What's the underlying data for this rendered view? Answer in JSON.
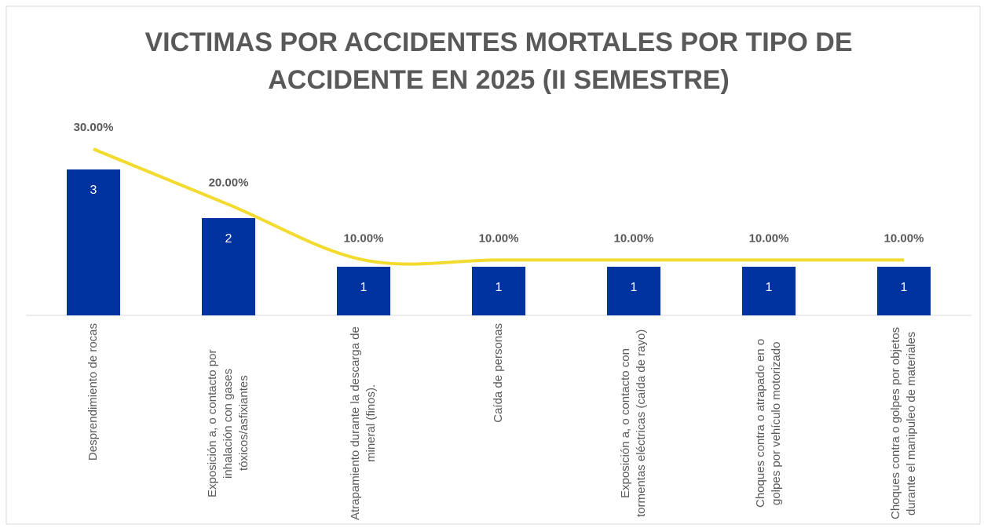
{
  "chart_data": {
    "type": "bar_line",
    "title": "VICTIMAS POR ACCIDENTES MORTALES POR TIPO DE ACCIDENTE EN 2025 (II SEMESTRE)",
    "categories": [
      "Desprendimiento de rocas",
      "Exposición a, o contacto por inhalación con gases tóxicos/asfixiantes",
      "Atrapamiento durante la descarga de mineral (finos).",
      "Caída de personas",
      "Exposición a, o contacto con tormentas eléctricas (caída de rayo)",
      "Choques contra o atrapado en o golpes por vehículo motorizado",
      "Choques contra o golpes por objetos durante el manipuleo de materiales"
    ],
    "series": [
      {
        "type": "bar",
        "color": "#0033a0",
        "values": [
          3,
          2,
          1,
          1,
          1,
          1,
          1
        ]
      },
      {
        "type": "line",
        "axis": "y2",
        "color": "#f2db2e",
        "values": [
          30,
          20,
          10,
          10,
          10,
          10,
          10
        ],
        "value_labels": [
          "30.00%",
          "20.00%",
          "10.00%",
          "10.00%",
          "10.00%",
          "10.00%",
          "10.00%"
        ]
      }
    ],
    "ylim": [
      0,
      3
    ],
    "y2lim": [
      0,
      30
    ]
  }
}
